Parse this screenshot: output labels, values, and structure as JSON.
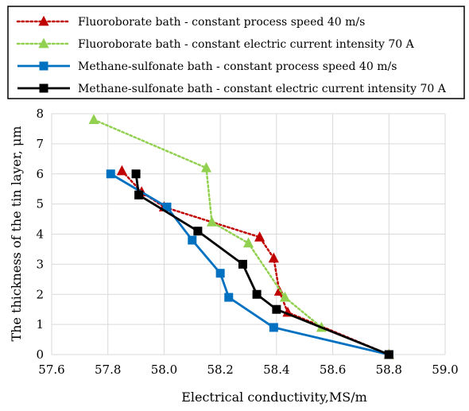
{
  "chart_data": {
    "type": "line",
    "title": "",
    "xlabel": "Electrical conductivity,MS/m",
    "ylabel": "The thickness of the tin layer, μm",
    "xlim": [
      57.6,
      59.0
    ],
    "ylim": [
      0,
      8
    ],
    "x_ticks": [
      "57.6",
      "57.8",
      "58.0",
      "58.2",
      "58.4",
      "58.6",
      "58.8",
      "59.0"
    ],
    "y_ticks": [
      "0",
      "1",
      "2",
      "3",
      "4",
      "5",
      "6",
      "7",
      "8"
    ],
    "grid": "both",
    "legend_position": "top",
    "series": [
      {
        "name": "Fluoroborate bath - constant process speed 40 m/s",
        "color": "#c00000",
        "line_style": "dotted",
        "marker": "triangle",
        "points": [
          [
            57.85,
            6.1
          ],
          [
            57.92,
            5.4
          ],
          [
            58.0,
            4.9
          ],
          [
            58.34,
            3.9
          ],
          [
            58.39,
            3.2
          ],
          [
            58.41,
            2.1
          ],
          [
            58.44,
            1.4
          ],
          [
            58.8,
            0.0
          ]
        ]
      },
      {
        "name": "Fluoroborate bath - constant electric current intensity 70 A",
        "color": "#92d050",
        "line_style": "dotted",
        "marker": "triangle",
        "points": [
          [
            57.75,
            7.8
          ],
          [
            58.15,
            6.2
          ],
          [
            58.17,
            4.4
          ],
          [
            58.3,
            3.7
          ],
          [
            58.43,
            1.9
          ],
          [
            58.56,
            0.9
          ],
          [
            58.8,
            0.0
          ]
        ]
      },
      {
        "name": "Methane-sulfonate bath - constant process speed 40 m/s",
        "color": "#0070c0",
        "line_style": "solid",
        "marker": "square",
        "points": [
          [
            57.81,
            6.0
          ],
          [
            58.01,
            4.9
          ],
          [
            58.1,
            3.8
          ],
          [
            58.2,
            2.7
          ],
          [
            58.23,
            1.9
          ],
          [
            58.39,
            0.9
          ],
          [
            58.8,
            0.0
          ]
        ]
      },
      {
        "name": "Methane-sulfonate bath - constant electric current intensity 70 A",
        "color": "#000000",
        "line_style": "solid",
        "marker": "square",
        "points": [
          [
            57.9,
            6.0
          ],
          [
            57.91,
            5.3
          ],
          [
            58.12,
            4.1
          ],
          [
            58.28,
            3.0
          ],
          [
            58.33,
            2.0
          ],
          [
            58.4,
            1.5
          ],
          [
            58.8,
            0.0
          ]
        ]
      }
    ]
  }
}
